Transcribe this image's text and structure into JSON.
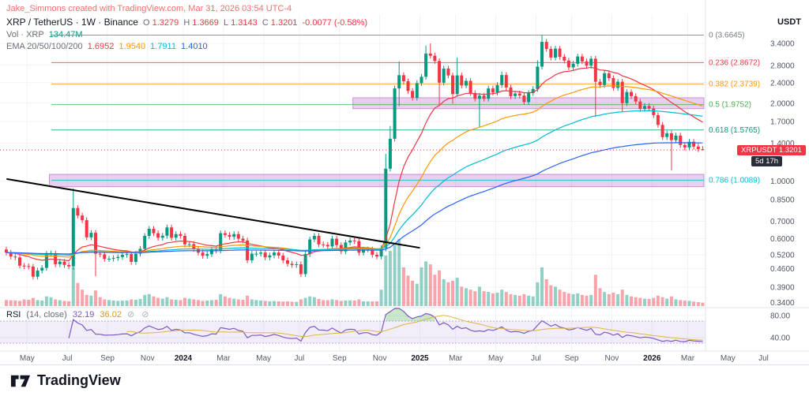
{
  "watermark": "Jake_Simmons created with TradingView.com, Mar 31, 2026 03:54 UTC-4",
  "header": {
    "title": "XRP / TetherUS · 1W · Binance",
    "ohlc": {
      "o_label": "O",
      "o": "1.3279",
      "h_label": "H",
      "h": "1.3669",
      "l_label": "L",
      "l": "1.3143",
      "c_label": "C",
      "c": "1.3201",
      "change": "-0.0077 (-0.58%)"
    },
    "volume_label": "Vol · XRP",
    "volume_value": "134.47M",
    "ema_label": "EMA 20/50/100/200",
    "ema_values": [
      "1.6952",
      "1.9540",
      "1.7911",
      "1.4010"
    ]
  },
  "price_axis": {
    "currency": "USDT",
    "labels": [
      {
        "text": "3.4000",
        "value": 3.4
      },
      {
        "text": "2.8000",
        "value": 2.8
      },
      {
        "text": "2.4000",
        "value": 2.4
      },
      {
        "text": "2.0000",
        "value": 2.0
      },
      {
        "text": "1.7000",
        "value": 1.7
      },
      {
        "text": "1.4000",
        "value": 1.4
      },
      {
        "text": "1.0000",
        "value": 1.0
      },
      {
        "text": "0.8500",
        "value": 0.85
      },
      {
        "text": "0.7000",
        "value": 0.7
      },
      {
        "text": "0.6000",
        "value": 0.6
      },
      {
        "text": "0.5200",
        "value": 0.52
      },
      {
        "text": "0.4600",
        "value": 0.46
      },
      {
        "text": "0.3900",
        "value": 0.39
      },
      {
        "text": "0.3400",
        "value": 0.34
      }
    ],
    "current_price_badge": {
      "label": "XRPUSDT 1.3201",
      "countdown": "5d 17h",
      "value": 1.3201,
      "color": "#f23645"
    }
  },
  "time_axis": {
    "labels": [
      {
        "text": "May",
        "index": 5,
        "year": false
      },
      {
        "text": "Jul",
        "index": 14,
        "year": false
      },
      {
        "text": "Sep",
        "index": 23,
        "year": false
      },
      {
        "text": "Nov",
        "index": 32,
        "year": false
      },
      {
        "text": "2024",
        "index": 40,
        "year": true
      },
      {
        "text": "Mar",
        "index": 49,
        "year": false
      },
      {
        "text": "May",
        "index": 58,
        "year": false
      },
      {
        "text": "Jul",
        "index": 66,
        "year": false
      },
      {
        "text": "Sep",
        "index": 75,
        "year": false
      },
      {
        "text": "Nov",
        "index": 84,
        "year": false
      },
      {
        "text": "2025",
        "index": 93,
        "year": true
      },
      {
        "text": "Mar",
        "index": 101,
        "year": false
      },
      {
        "text": "May",
        "index": 110,
        "year": false
      },
      {
        "text": "Jul",
        "index": 119,
        "year": false
      },
      {
        "text": "Sep",
        "index": 127,
        "year": false
      },
      {
        "text": "Nov",
        "index": 136,
        "year": false
      },
      {
        "text": "2026",
        "index": 145,
        "year": true
      },
      {
        "text": "Mar",
        "index": 153,
        "year": false
      },
      {
        "text": "May",
        "index": 162,
        "year": false
      },
      {
        "text": "Jul",
        "index": 170,
        "year": false
      }
    ]
  },
  "rsi_panel": {
    "title": "RSI",
    "params": "(14, close)",
    "value": "32.19",
    "ma_value": "36.02",
    "empty": "⊘ ⊘",
    "axis_labels": [
      {
        "text": "80.00",
        "value": 80
      },
      {
        "text": "40.00",
        "value": 40
      }
    ],
    "line_color": "#7e57c2",
    "ma_color": "#e0b53f"
  },
  "footer": {
    "brand": "TradingView"
  },
  "chart_data": {
    "type": "candlestick",
    "symbol": "XRPUSDT",
    "timeframe": "1W",
    "first_week": "2023-03-27",
    "y_axis_log": true,
    "up_color": "#089981",
    "down_color": "#f23645",
    "open_first": 0.545,
    "closes": [
      0.53,
      0.512,
      0.508,
      0.472,
      0.47,
      0.468,
      0.428,
      0.452,
      0.463,
      0.524,
      0.526,
      0.478,
      0.489,
      0.475,
      0.469,
      0.788,
      0.737,
      0.707,
      0.607,
      0.632,
      0.525,
      0.522,
      0.501,
      0.502,
      0.505,
      0.51,
      0.52,
      0.523,
      0.488,
      0.525,
      0.548,
      0.615,
      0.655,
      0.63,
      0.605,
      0.616,
      0.663,
      0.605,
      0.625,
      0.615,
      0.57,
      0.572,
      0.548,
      0.53,
      0.515,
      0.523,
      0.545,
      0.54,
      0.63,
      0.62,
      0.61,
      0.625,
      0.6,
      0.59,
      0.495,
      0.525,
      0.525,
      0.53,
      0.508,
      0.517,
      0.53,
      0.516,
      0.495,
      0.48,
      0.475,
      0.478,
      0.438,
      0.523,
      0.596,
      0.615,
      0.57,
      0.568,
      0.56,
      0.6,
      0.567,
      0.536,
      0.58,
      0.59,
      0.587,
      0.53,
      0.545,
      0.545,
      0.52,
      0.512,
      0.552,
      1.118,
      1.458,
      2.28,
      2.565,
      2.43,
      2.23,
      2.1,
      2.39,
      2.53,
      3.11,
      3.05,
      2.91,
      2.4,
      2.72,
      2.56,
      2.17,
      2.56,
      2.34,
      2.44,
      2.19,
      2.08,
      2.14,
      2.08,
      2.28,
      2.2,
      2.35,
      2.57,
      2.3,
      2.13,
      2.18,
      2.14,
      2.02,
      2.19,
      2.27,
      2.77,
      3.45,
      3.24,
      3.0,
      3.25,
      3.02,
      2.92,
      2.75,
      2.84,
      3.03,
      2.9,
      2.79,
      2.97,
      2.42,
      2.35,
      2.61,
      2.5,
      2.29,
      2.42,
      2.0,
      2.21,
      2.13,
      2.03,
      1.9,
      1.95,
      1.91,
      1.8,
      1.65,
      1.48,
      1.53,
      1.44,
      1.5,
      1.38,
      1.35,
      1.42,
      1.36,
      1.33,
      1.3201
    ],
    "ohlc_overrides": {
      "15": {
        "h": 0.938,
        "l": 0.455
      },
      "20": {
        "l": 0.43
      },
      "85": {
        "h": 1.275,
        "l": 0.535
      },
      "86": {
        "h": 1.633
      },
      "88": {
        "h": 2.901,
        "l": 1.946
      },
      "94": {
        "h": 3.34
      },
      "95": {
        "h": 3.4
      },
      "97": {
        "l": 1.95
      },
      "100": {
        "l": 1.99
      },
      "101": {
        "h": 3.005
      },
      "106": {
        "l": 1.61
      },
      "111": {
        "h": 2.65
      },
      "119": {
        "h": 2.93
      },
      "120": {
        "h": 3.6645
      },
      "132": {
        "l": 1.77
      },
      "138": {
        "l": 1.85
      },
      "149": {
        "l": 1.1
      },
      "156": {
        "o": 1.3279,
        "h": 1.3669,
        "l": 1.3143
      }
    },
    "volumes": [
      820,
      780,
      760,
      700,
      900,
      850,
      1100,
      800,
      750,
      1300,
      1200,
      900,
      800,
      700,
      650,
      5200,
      3100,
      2200,
      1500,
      1400,
      2100,
      1200,
      900,
      800,
      750,
      700,
      720,
      760,
      900,
      850,
      950,
      1500,
      1600,
      1300,
      1100,
      1000,
      1200,
      900,
      850,
      800,
      1100,
      1000,
      900,
      800,
      700,
      750,
      800,
      850,
      1600,
      1300,
      1100,
      1000,
      900,
      850,
      1400,
      900,
      800,
      750,
      700,
      650,
      680,
      640,
      600,
      620,
      580,
      560,
      900,
      1100,
      1300,
      1200,
      950,
      800,
      780,
      900,
      820,
      700,
      750,
      760,
      740,
      900,
      650,
      630,
      620,
      640,
      2200,
      6800,
      7400,
      8200,
      9000,
      5200,
      4100,
      3400,
      3000,
      5200,
      6000,
      5600,
      4200,
      4800,
      3600,
      3200,
      3400,
      3800,
      2600,
      2400,
      2200,
      2000,
      2600,
      2000,
      1900,
      1700,
      1800,
      2200,
      1900,
      1600,
      1500,
      1400,
      1600,
      1400,
      1300,
      3200,
      5200,
      3600,
      2800,
      2600,
      2200,
      1900,
      1700,
      1600,
      1700,
      1500,
      1400,
      1500,
      4200,
      2400,
      1900,
      1600,
      1800,
      1600,
      2200,
      1500,
      1300,
      1200,
      1100,
      1000,
      950,
      1100,
      1400,
      1200,
      1000,
      1300,
      900,
      800,
      750,
      700,
      600,
      520,
      450
    ],
    "fib_levels": [
      {
        "ratio": "0",
        "value": 3.6645,
        "color": "#787b86"
      },
      {
        "ratio": "0.236",
        "value": 2.8672,
        "color": "#f23645"
      },
      {
        "ratio": "0.382",
        "value": 2.3739,
        "color": "#ff9800"
      },
      {
        "ratio": "0.5",
        "value": 1.9752,
        "color": "#4caf50"
      },
      {
        "ratio": "0.618",
        "value": 1.5765,
        "color": "#089981"
      },
      {
        "ratio": "0.786",
        "value": 1.0089,
        "color": "#00bcd4"
      }
    ],
    "bands": [
      {
        "from_index": 78,
        "price_high": 2.1,
        "price_low": 1.905,
        "fill": "#9c27b0"
      },
      {
        "from_index": 10,
        "price_high": 1.063,
        "price_low": 0.952,
        "fill": "#9c27b0"
      }
    ],
    "trendline": {
      "from_index": 0.4,
      "from_price": 1.02,
      "to_index": 93,
      "to_price": 0.553,
      "color": "#000000"
    },
    "emas": {
      "periods": [
        20,
        50,
        100,
        200
      ],
      "colors": [
        "#f23645",
        "#ff9800",
        "#00bcd4",
        "#2962ff"
      ]
    },
    "rsi": {
      "period": 14,
      "ma_period": 14,
      "overbought": 70,
      "oversold": 30
    }
  }
}
